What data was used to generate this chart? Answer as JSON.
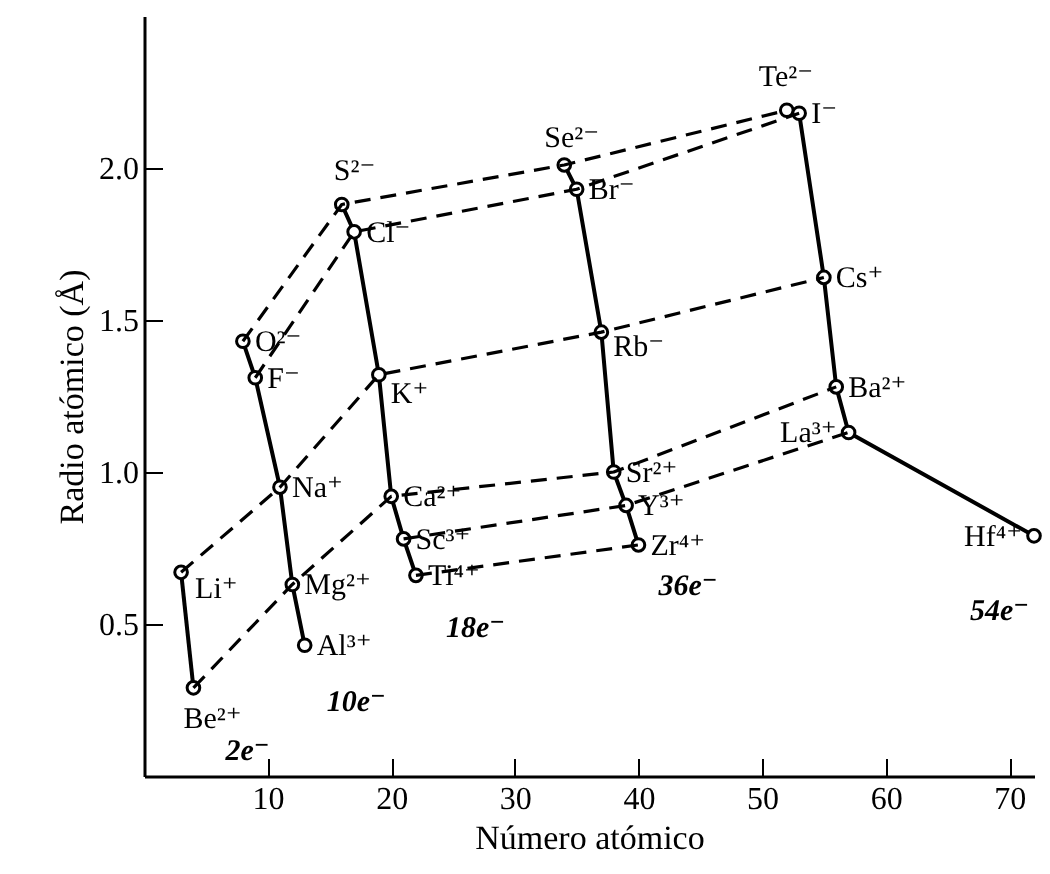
{
  "chart_data": {
    "type": "line",
    "xlabel": "Número atómico",
    "ylabel": "Radio atómico (Å)",
    "xlim": [
      0,
      72
    ],
    "xticks": [
      10,
      20,
      30,
      40,
      50,
      60,
      70
    ],
    "ylim": [
      0,
      2.5
    ],
    "yticks": [
      {
        "value": 0.5,
        "label": "0.5"
      },
      {
        "value": 1,
        "label": "1.0"
      },
      {
        "value": 1.5,
        "label": "1.5"
      },
      {
        "value": 2,
        "label": "2.0"
      }
    ],
    "grid": false,
    "series": [
      {
        "color": "#000000",
        "marker": "circle",
        "line_style": "solid",
        "x": [
          3,
          4
        ],
        "values": [
          0.67,
          0.29
        ]
      },
      {
        "color": "#000000",
        "marker": "circle",
        "line_style": "solid",
        "x": [
          8,
          9,
          11,
          12,
          13
        ],
        "values": [
          1.43,
          1.31,
          0.95,
          0.63,
          0.43
        ]
      },
      {
        "color": "#000000",
        "marker": "circle",
        "line_style": "solid",
        "x": [
          16,
          17,
          19,
          20,
          21,
          22
        ],
        "values": [
          1.88,
          1.79,
          1.32,
          0.92,
          0.78,
          0.66
        ]
      },
      {
        "color": "#000000",
        "marker": "circle",
        "line_style": "solid",
        "x": [
          34,
          35,
          37,
          38,
          39,
          40
        ],
        "values": [
          2.01,
          1.93,
          1.46,
          1.0,
          0.89,
          0.76
        ]
      },
      {
        "color": "#000000",
        "marker": "circle",
        "line_style": "solid",
        "x": [
          52,
          53,
          55,
          56,
          57,
          72
        ],
        "values": [
          2.19,
          2.18,
          1.64,
          1.28,
          1.13,
          0.79
        ]
      },
      {
        "color": "#000000",
        "marker": "none",
        "line_style": "dashed",
        "x": [
          8,
          16,
          34,
          52
        ],
        "values": [
          1.43,
          1.88,
          2.01,
          2.19
        ]
      },
      {
        "color": "#000000",
        "marker": "none",
        "line_style": "dashed",
        "x": [
          9,
          17,
          35,
          53
        ],
        "values": [
          1.31,
          1.79,
          1.93,
          2.18
        ]
      },
      {
        "color": "#000000",
        "marker": "none",
        "line_style": "dashed",
        "x": [
          3,
          11,
          19,
          37,
          55
        ],
        "values": [
          0.67,
          0.95,
          1.32,
          1.46,
          1.64
        ]
      },
      {
        "color": "#000000",
        "marker": "none",
        "line_style": "dashed",
        "x": [
          4,
          12,
          20,
          38,
          56
        ],
        "values": [
          0.29,
          0.63,
          0.92,
          1.0,
          1.28
        ]
      },
      {
        "color": "#000000",
        "marker": "none",
        "line_style": "dashed",
        "x": [
          21,
          39,
          57
        ],
        "values": [
          0.78,
          0.89,
          1.13
        ]
      },
      {
        "color": "#000000",
        "marker": "none",
        "line_style": "dashed",
        "x": [
          22,
          40
        ],
        "values": [
          0.66,
          0.76
        ]
      }
    ],
    "annotations": [
      {
        "text": "Li⁺",
        "x": 3,
        "y": 0.67
      },
      {
        "text": "Be²⁺",
        "x": 4,
        "y": 0.29
      },
      {
        "text": "Na⁺",
        "x": 11,
        "y": 0.95
      },
      {
        "text": "Mg²⁺",
        "x": 12,
        "y": 0.63
      },
      {
        "text": "Al³⁺",
        "x": 13,
        "y": 0.43
      },
      {
        "text": "O²⁻",
        "x": 8,
        "y": 1.43
      },
      {
        "text": "F⁻",
        "x": 9,
        "y": 1.31
      },
      {
        "text": "S²⁻",
        "x": 16,
        "y": 1.88
      },
      {
        "text": "Cl⁻",
        "x": 17,
        "y": 1.79
      },
      {
        "text": "K⁺",
        "x": 19,
        "y": 1.32
      },
      {
        "text": "Ca²⁺",
        "x": 20,
        "y": 0.92
      },
      {
        "text": "Sc³⁺",
        "x": 21,
        "y": 0.78
      },
      {
        "text": "Ti⁴⁺",
        "x": 22,
        "y": 0.66
      },
      {
        "text": "Se²⁻",
        "x": 34,
        "y": 2.01
      },
      {
        "text": "Br⁻",
        "x": 35,
        "y": 1.93
      },
      {
        "text": "Rb⁻",
        "x": 37,
        "y": 1.46
      },
      {
        "text": "Sr²⁺",
        "x": 38,
        "y": 1.0
      },
      {
        "text": "Y³⁺",
        "x": 39,
        "y": 0.89
      },
      {
        "text": "Zr⁴⁺",
        "x": 40,
        "y": 0.76
      },
      {
        "text": "Te²⁻",
        "x": 52,
        "y": 2.19
      },
      {
        "text": "I⁻",
        "x": 53,
        "y": 2.18
      },
      {
        "text": "Cs⁺",
        "x": 55,
        "y": 1.64
      },
      {
        "text": "Ba²⁺",
        "x": 56,
        "y": 1.28
      },
      {
        "text": "La³⁺",
        "x": 57,
        "y": 1.13
      },
      {
        "text": "Hf⁴⁺",
        "x": 72,
        "y": 0.79
      },
      {
        "text": "2e⁻",
        "x": 4,
        "y": 0.29
      },
      {
        "text": "10e⁻",
        "x": 13,
        "y": 0.43
      },
      {
        "text": "18e⁻",
        "x": 22,
        "y": 0.66
      },
      {
        "text": "36e⁻",
        "x": 40,
        "y": 0.76
      },
      {
        "text": "54e⁻",
        "x": 72,
        "y": 0.79
      }
    ]
  }
}
